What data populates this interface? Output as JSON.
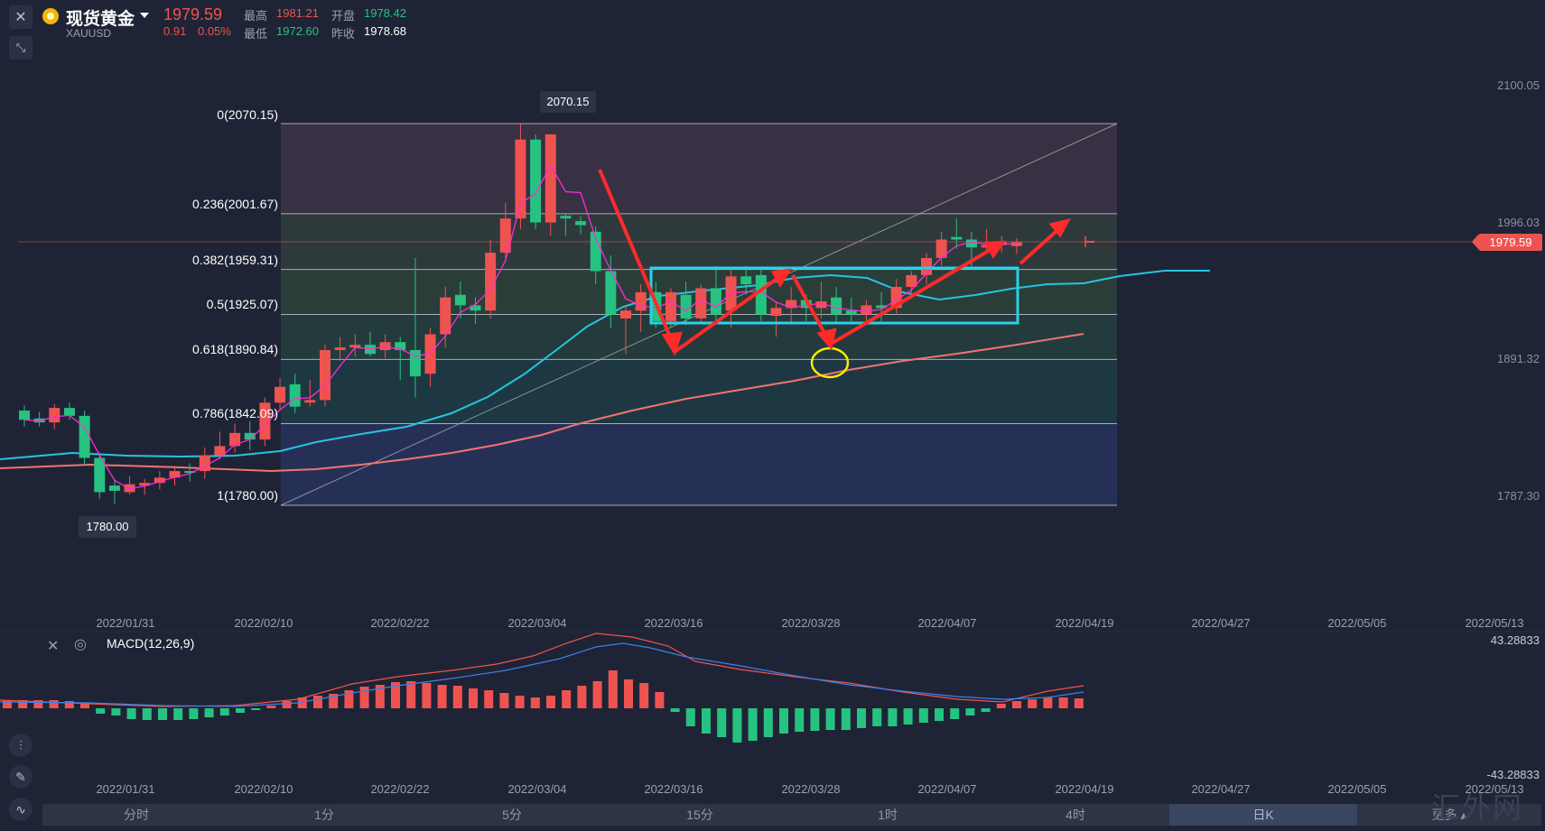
{
  "header": {
    "instrument_name": "现货黄金",
    "symbol": "XAUUSD",
    "last_price": "1979.59",
    "change": "0.91",
    "change_pct": "0.05%",
    "high_label": "最高",
    "high_value": "1981.21",
    "open_label": "开盘",
    "open_value": "1978.42",
    "low_label": "最低",
    "low_value": "1972.60",
    "prev_close_label": "昨收",
    "prev_close_value": "1978.68"
  },
  "price_axis": {
    "ticks": [
      "2100.05",
      "1996.03",
      "1891.32",
      "1787.30"
    ],
    "current_price_tag": "1979.59"
  },
  "annotations": {
    "high_marker": "2070.15",
    "low_marker": "1780.00"
  },
  "fibonacci": {
    "levels": [
      {
        "label": "0(2070.15)",
        "price": 2070.15
      },
      {
        "label": "0.236(2001.67)",
        "price": 2001.67
      },
      {
        "label": "0.382(1959.31)",
        "price": 1959.31
      },
      {
        "label": "0.5(1925.07)",
        "price": 1925.07
      },
      {
        "label": "0.618(1890.84)",
        "price": 1890.84
      },
      {
        "label": "0.786(1842.09)",
        "price": 1842.09
      },
      {
        "label": "1(1780.00)",
        "price": 1780.0
      }
    ]
  },
  "date_axis": [
    "2022/01/31",
    "2022/02/10",
    "2022/02/22",
    "2022/03/04",
    "2022/03/16",
    "2022/03/28",
    "2022/04/07",
    "2022/04/19",
    "2022/04/27",
    "2022/05/05",
    "2022/05/13"
  ],
  "macd": {
    "label": "MACD(12,26,9)",
    "axis_top": "43.28833",
    "axis_bottom": "-43.28833",
    "date_axis": [
      "2022/01/31",
      "2022/02/10",
      "2022/02/22",
      "2022/03/04",
      "2022/03/16",
      "2022/03/28",
      "2022/04/07",
      "2022/04/19",
      "2022/04/27",
      "2022/05/05",
      "2022/05/13"
    ]
  },
  "timeframes": [
    {
      "label": "分时",
      "active": false
    },
    {
      "label": "1分",
      "active": false
    },
    {
      "label": "5分",
      "active": false
    },
    {
      "label": "15分",
      "active": false
    },
    {
      "label": "1时",
      "active": false
    },
    {
      "label": "4时",
      "active": false
    },
    {
      "label": "日K",
      "active": true
    }
  ],
  "more_label": "更多",
  "watermark": "汇外网",
  "colors": {
    "up": "#ef5350",
    "down": "#26c281",
    "background": "#1e2435",
    "ma_short": "#ff2bd6",
    "ma_mid": "#27c4e0",
    "ma_long": "#f27471",
    "range_box": "#27d3e6",
    "arrows": "#ff2a2a",
    "circle": "#ffeb00"
  },
  "icons": [
    "close-icon",
    "collapse-icon",
    "settings-icon",
    "indicator-icon",
    "draw-icon",
    "chart-type-icon"
  ],
  "chart_data": {
    "type": "candlestick",
    "title": "现货黄金 XAUUSD",
    "y_range": [
      1760,
      2110
    ],
    "ohlc_approx": [
      [
        1852,
        1856,
        1840,
        1845
      ],
      [
        1846,
        1851,
        1840,
        1843
      ],
      [
        1843,
        1857,
        1838,
        1854
      ],
      [
        1854,
        1858,
        1845,
        1848
      ],
      [
        1848,
        1852,
        1811,
        1816
      ],
      [
        1816,
        1820,
        1785,
        1790
      ],
      [
        1795,
        1800,
        1781,
        1791
      ],
      [
        1790,
        1802,
        1788,
        1796
      ],
      [
        1795,
        1800,
        1788,
        1797
      ],
      [
        1797,
        1806,
        1792,
        1801
      ],
      [
        1801,
        1810,
        1795,
        1806
      ],
      [
        1806,
        1812,
        1798,
        1805
      ],
      [
        1806,
        1824,
        1800,
        1818
      ],
      [
        1818,
        1836,
        1815,
        1825
      ],
      [
        1825,
        1842,
        1820,
        1835
      ],
      [
        1835,
        1844,
        1822,
        1830
      ],
      [
        1830,
        1862,
        1825,
        1858
      ],
      [
        1858,
        1877,
        1852,
        1870
      ],
      [
        1872,
        1880,
        1850,
        1855
      ],
      [
        1858,
        1875,
        1855,
        1860
      ],
      [
        1860,
        1902,
        1855,
        1898
      ],
      [
        1898,
        1908,
        1890,
        1900
      ],
      [
        1900,
        1910,
        1893,
        1902
      ],
      [
        1902,
        1912,
        1893,
        1895
      ],
      [
        1898,
        1910,
        1892,
        1904
      ],
      [
        1904,
        1908,
        1875,
        1898
      ],
      [
        1898,
        1968,
        1862,
        1878
      ],
      [
        1880,
        1915,
        1870,
        1910
      ],
      [
        1910,
        1946,
        1900,
        1938
      ],
      [
        1940,
        1950,
        1922,
        1932
      ],
      [
        1932,
        1938,
        1918,
        1928
      ],
      [
        1928,
        1982,
        1922,
        1972
      ],
      [
        1972,
        2010,
        1968,
        1998
      ],
      [
        1998,
        2070,
        1990,
        2058
      ],
      [
        2058,
        2062,
        1990,
        1995
      ],
      [
        1995,
        2062,
        1985,
        2062
      ],
      [
        2000,
        2002,
        1985,
        1998
      ],
      [
        1996,
        2000,
        1986,
        1993
      ],
      [
        1988,
        1992,
        1948,
        1958
      ],
      [
        1958,
        1970,
        1915,
        1925
      ],
      [
        1922,
        1932,
        1895,
        1928
      ],
      [
        1928,
        1948,
        1912,
        1942
      ],
      [
        1942,
        1950,
        1915,
        1920
      ],
      [
        1920,
        1945,
        1915,
        1942
      ],
      [
        1940,
        1950,
        1917,
        1922
      ],
      [
        1922,
        1948,
        1918,
        1945
      ],
      [
        1945,
        1962,
        1918,
        1925
      ],
      [
        1928,
        1960,
        1915,
        1954
      ],
      [
        1954,
        1962,
        1940,
        1948
      ],
      [
        1955,
        1960,
        1920,
        1925
      ],
      [
        1924,
        1935,
        1908,
        1930
      ],
      [
        1930,
        1946,
        1918,
        1936
      ],
      [
        1936,
        1940,
        1920,
        1930
      ],
      [
        1930,
        1950,
        1922,
        1935
      ],
      [
        1938,
        1946,
        1918,
        1925
      ],
      [
        1928,
        1938,
        1920,
        1925
      ],
      [
        1925,
        1936,
        1918,
        1932
      ],
      [
        1932,
        1942,
        1920,
        1930
      ],
      [
        1930,
        1952,
        1925,
        1946
      ],
      [
        1946,
        1958,
        1940,
        1955
      ],
      [
        1955,
        1972,
        1948,
        1968
      ],
      [
        1968,
        1988,
        1962,
        1982
      ],
      [
        1984,
        1998,
        1975,
        1982
      ],
      [
        1982,
        1988,
        1960,
        1976
      ],
      [
        1976,
        1990,
        1972,
        1978
      ],
      [
        1978,
        1985,
        1972,
        1980
      ],
      [
        1977,
        1983,
        1971,
        1980
      ]
    ]
  }
}
